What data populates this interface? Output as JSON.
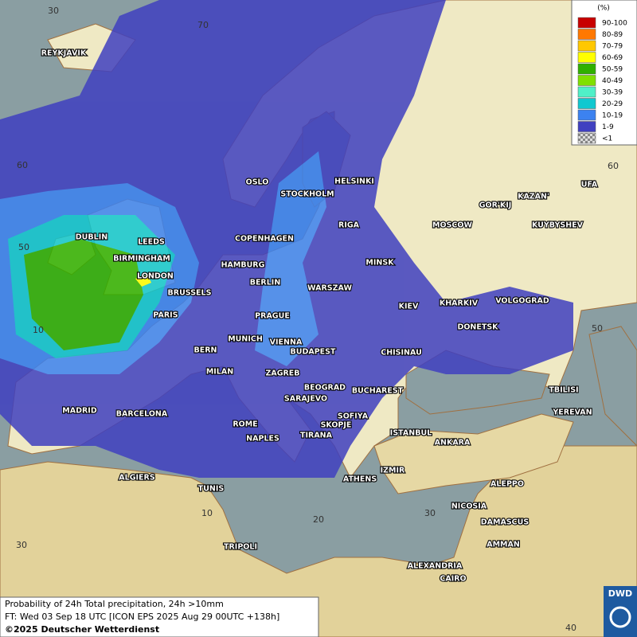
{
  "legend": {
    "title": "(%)",
    "items": [
      {
        "label": "90-100",
        "color": "#c80000"
      },
      {
        "label": "80-89",
        "color": "#ff7800"
      },
      {
        "label": "70-79",
        "color": "#ffc800"
      },
      {
        "label": "60-69",
        "color": "#ffff00"
      },
      {
        "label": "50-59",
        "color": "#30b000"
      },
      {
        "label": "40-49",
        "color": "#80e000"
      },
      {
        "label": "30-39",
        "color": "#50f0c8"
      },
      {
        "label": "20-29",
        "color": "#10c8d0"
      },
      {
        "label": "10-19",
        "color": "#3c82f0"
      },
      {
        "label": "1-9",
        "color": "#4040c0"
      },
      {
        "label": "<1",
        "color": "checker"
      }
    ]
  },
  "cities": [
    "REYKJAVIK",
    "OSLO",
    "STOCKHOLM",
    "HELSINKI",
    "DUBLIN",
    "LEEDS",
    "BIRMINGHAM",
    "LONDON",
    "COPENHAGEN",
    "RIGA",
    "MOSCOW",
    "GOR'KIJ",
    "KAZAN'",
    "UFA",
    "KUYBYSHEV",
    "HAMBURG",
    "BERLIN",
    "MINSK",
    "WARSZAW",
    "BRUSSELS",
    "PARIS",
    "PRAGUE",
    "KIEV",
    "KHARKIV",
    "VOLGOGRAD",
    "DONETSK",
    "MUNICH",
    "VIENNA",
    "BERN",
    "BUDAPEST",
    "CHISINAU",
    "MILAN",
    "ZAGREB",
    "BEOGRAD",
    "BUCHAREST",
    "TBILISI",
    "MADRID",
    "BARCELONA",
    "SARAJEVO",
    "SOFIYA",
    "YEREVAN",
    "ROME",
    "SKOPJE",
    "TIRANA",
    "NAPLES",
    "ISTANBUL",
    "ANKARA",
    "IZMIR",
    "ALGIERS",
    "ATHENS",
    "ALEPPO",
    "TUNIS",
    "NICOSIA",
    "DAMASCUS",
    "AMMAN",
    "TRIPOLI",
    "ALEXANDRIA",
    "CAIRO"
  ],
  "graticule_labels": [
    "30",
    "70",
    "60",
    "50",
    "10",
    "60",
    "50",
    "10",
    "20",
    "30",
    "40",
    "30"
  ],
  "footer": {
    "lines": [
      "Probability of 24h Total precipitation, 24h >10mm",
      "FT: Wed 03 Sep 18 UTC [ICON EPS 2025 Aug 29 00UTC +138h]",
      "©2025 Deutscher Wetterdienst"
    ]
  },
  "logo": "DWD"
}
